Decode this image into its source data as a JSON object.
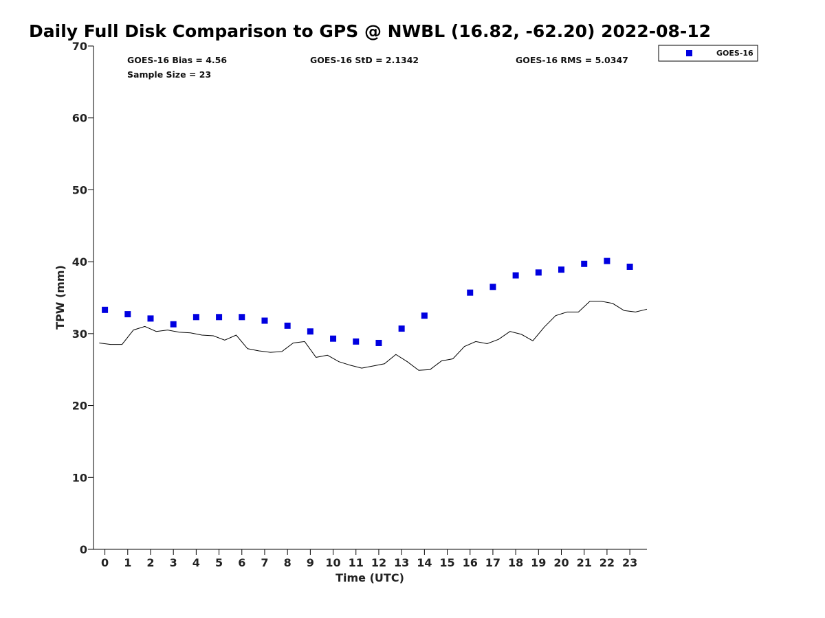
{
  "chart_data": {
    "type": "scatter",
    "title": "Daily Full Disk Comparison to GPS @ NWBL (16.82, -62.20) 2022-08-12",
    "xlabel": "Time (UTC)",
    "ylabel": "TPW (mm)",
    "xlim": [
      -0.5,
      23.75
    ],
    "ylim": [
      0,
      70
    ],
    "x_ticks": [
      0,
      1,
      2,
      3,
      4,
      5,
      6,
      7,
      8,
      9,
      10,
      11,
      12,
      13,
      14,
      15,
      16,
      17,
      18,
      19,
      20,
      21,
      22,
      23
    ],
    "y_ticks": [
      0,
      10,
      20,
      30,
      40,
      50,
      60,
      70
    ],
    "grid": false,
    "legend_position": "top-right, outside plot",
    "stats": {
      "bias": "GOES-16 Bias = 4.56",
      "sample": "Sample Size = 23",
      "std": "GOES-16 StD = 2.1342",
      "rms": "GOES-16 RMS = 5.0347"
    },
    "series": [
      {
        "name": "GOES-16",
        "kind": "scatter",
        "marker": "square",
        "color": "#0000e0",
        "x": [
          0,
          1,
          2,
          3,
          4,
          5,
          6,
          7,
          8,
          9,
          10,
          11,
          12,
          13,
          14,
          16,
          17,
          18,
          19,
          20,
          21,
          22,
          23
        ],
        "y": [
          33.3,
          32.7,
          32.1,
          31.3,
          32.3,
          32.3,
          32.3,
          31.8,
          31.1,
          30.3,
          29.3,
          28.9,
          28.7,
          30.7,
          32.5,
          35.7,
          36.5,
          38.1,
          38.5,
          38.9,
          39.7,
          40.1,
          39.3
        ]
      },
      {
        "kind": "line",
        "color": "#000000",
        "x": [
          -0.25,
          0.25,
          0.75,
          1.25,
          1.75,
          2.25,
          2.75,
          3.25,
          3.75,
          4.25,
          4.75,
          5.25,
          5.75,
          6.25,
          6.75,
          7.25,
          7.75,
          8.25,
          8.75,
          9.25,
          9.75,
          10.25,
          10.75,
          11.25,
          11.75,
          12.25,
          12.75,
          13.25,
          13.75,
          14.25,
          14.75,
          15.25,
          15.75,
          16.25,
          16.75,
          17.25,
          17.75,
          18.25,
          18.75,
          19.25,
          19.75,
          20.25,
          20.75,
          21.25,
          21.75,
          22.25,
          22.75,
          23.25,
          23.75
        ],
        "y": [
          28.7,
          28.5,
          28.5,
          30.5,
          31.0,
          30.3,
          30.5,
          30.2,
          30.1,
          29.8,
          29.7,
          29.1,
          29.8,
          27.9,
          27.6,
          27.4,
          27.5,
          28.7,
          28.9,
          26.7,
          27.0,
          26.1,
          25.6,
          25.2,
          25.5,
          25.8,
          27.1,
          26.1,
          24.9,
          25.0,
          26.2,
          26.5,
          28.2,
          28.9,
          28.6,
          29.2,
          30.3,
          29.9,
          29.0,
          30.9,
          32.5,
          33.0,
          33.0,
          34.5,
          34.5,
          34.2,
          33.2,
          33.0,
          33.4
        ]
      }
    ]
  }
}
